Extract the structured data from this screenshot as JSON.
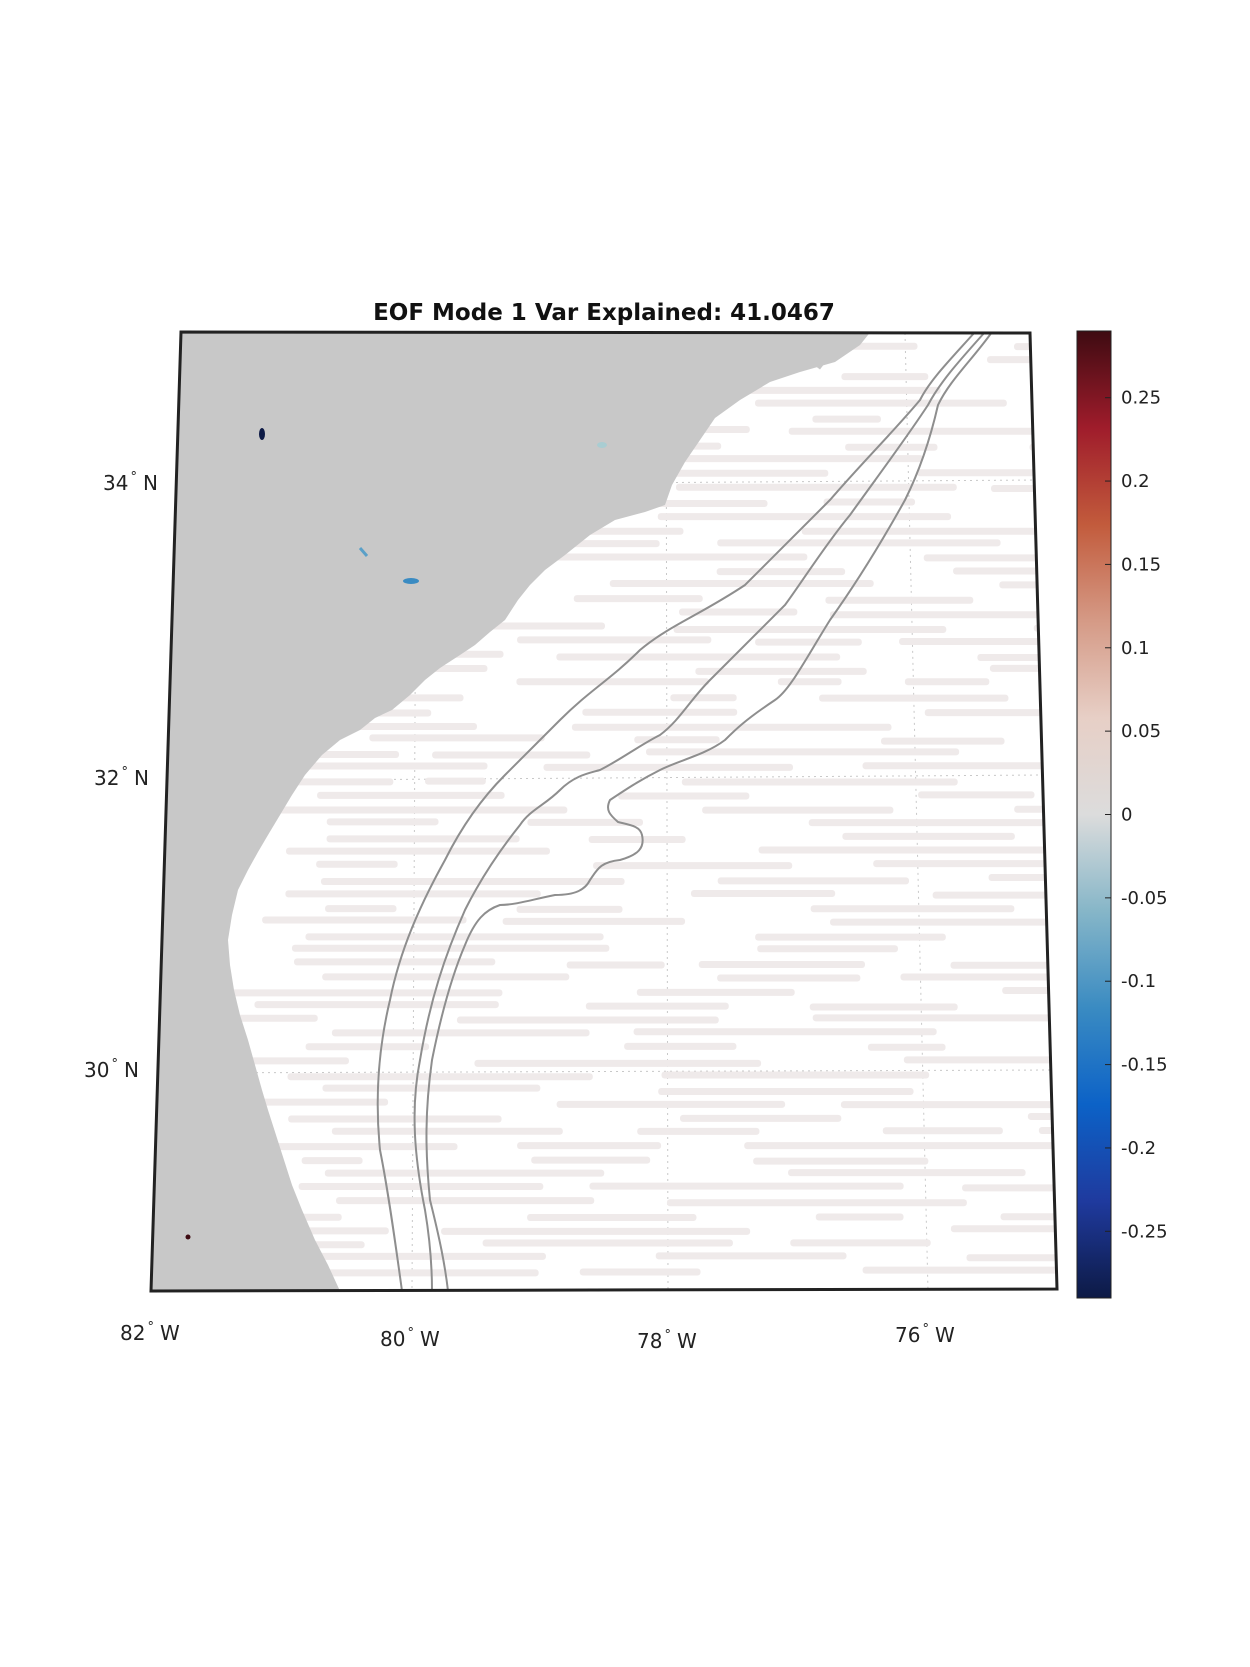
{
  "title": "EOF Mode 1 Var Explained: 41.0467",
  "map": {
    "longitude_labels": [
      {
        "deg": "82",
        "hemi": "W"
      },
      {
        "deg": "80",
        "hemi": "W"
      },
      {
        "deg": "78",
        "hemi": "W"
      },
      {
        "deg": "76",
        "hemi": "W"
      }
    ],
    "latitude_labels": [
      {
        "deg": "34",
        "hemi": "N"
      },
      {
        "deg": "32",
        "hemi": "N"
      },
      {
        "deg": "30",
        "hemi": "N"
      }
    ],
    "degree_symbol": "°",
    "land_color": "#c8c8c8",
    "ocean_color": "#ffffff",
    "data_streak_color": "#efeaea",
    "contour_color": "#8e8e8e",
    "frame_color": "#222222"
  },
  "colorbar": {
    "min": -0.29,
    "max": 0.29,
    "tick_labels": [
      "0.25",
      "0.2",
      "0.15",
      "0.1",
      "0.05",
      "0",
      "-0.05",
      "-0.1",
      "-0.15",
      "-0.2",
      "-0.25"
    ],
    "tick_values": [
      0.25,
      0.2,
      0.15,
      0.1,
      0.05,
      0,
      -0.05,
      -0.1,
      -0.15,
      -0.2,
      -0.25
    ],
    "colormap": [
      "#0d1a45",
      "#1f3a9e",
      "#0c62c7",
      "#3a8bc2",
      "#86b6c8",
      "#dcdcdc",
      "#e7cfc6",
      "#d59a86",
      "#c25b3c",
      "#9f1c2b",
      "#3e0b12"
    ]
  }
}
